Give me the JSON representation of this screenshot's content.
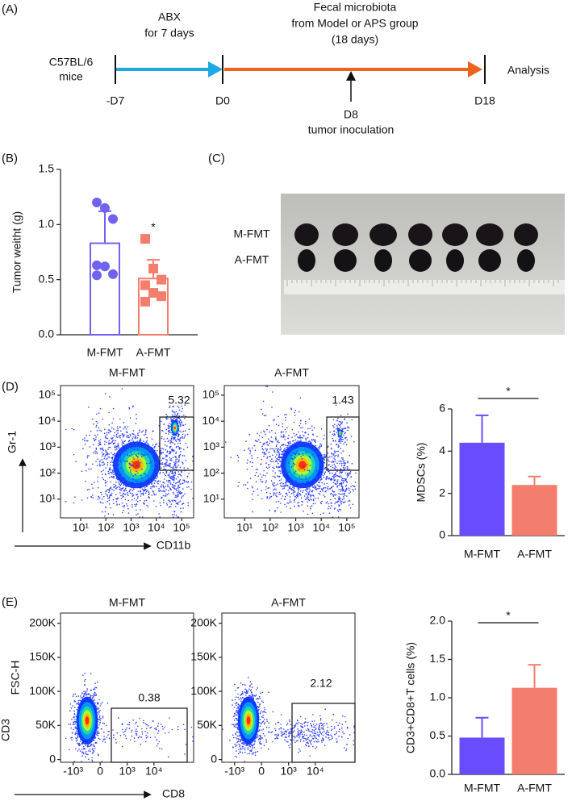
{
  "panel_labels": [
    "(A)",
    "(B)",
    "(C)",
    "(D)",
    "(E)"
  ],
  "timeline": {
    "subject_lines": [
      "C57BL/6",
      "mice"
    ],
    "phase1_lines": [
      "ABX",
      "for 7 days"
    ],
    "phase2_lines": [
      "Fecal microbiota",
      "from Model or APS group",
      "(18 days)"
    ],
    "days": [
      "-D7",
      "D0",
      "D18"
    ],
    "event_lines": [
      "D8",
      "tumor inoculation"
    ],
    "end_label": "Analysis"
  },
  "photo": {
    "row_labels": [
      "M-FMT",
      "A-FMT"
    ]
  },
  "chart_data": [
    {
      "type": "bar",
      "ylabel": "Tumor weitht (g)",
      "categories": [
        "M-FMT",
        "A-FMT"
      ],
      "values": [
        0.83,
        0.51
      ],
      "errors": [
        0.29,
        0.17
      ],
      "colors": [
        "#7262f2",
        "#f47e6e"
      ],
      "filled": false,
      "points": [
        [
          1.2,
          1.15,
          1.05,
          0.63,
          0.62,
          0.55,
          0.54
        ],
        [
          0.87,
          0.6,
          0.5,
          0.45,
          0.38,
          0.35,
          0.3
        ]
      ],
      "markers": [
        "circle",
        "square"
      ],
      "annotation": "*",
      "significance_line": false,
      "ylim": [
        0,
        1.5
      ],
      "yticks": [
        {
          "value": 0,
          "label": "0.0"
        },
        {
          "value": 0.5,
          "label": "0.5"
        },
        {
          "value": 1,
          "label": "1.0"
        },
        {
          "value": 1.5,
          "label": "1.5"
        }
      ]
    },
    {
      "type": "flow",
      "title": "M-FMT",
      "ylabel": "Gr-1",
      "xlabel": "CD11b",
      "xscale": "log",
      "yscale": "log",
      "xlim": [
        1.6,
        300000
      ],
      "ylim": [
        1.9,
        235000
      ],
      "gate_value": 5.32,
      "xticks": [
        {
          "value": 10,
          "label": "10¹"
        },
        {
          "value": 100,
          "label": "10²"
        },
        {
          "value": 1000,
          "label": "10³"
        },
        {
          "value": 10000,
          "label": "10⁴"
        },
        {
          "value": 100000,
          "label": "10⁵"
        }
      ],
      "yticks": [
        {
          "value": 10,
          "label": "10¹"
        },
        {
          "value": 100,
          "label": "10²"
        },
        {
          "value": 1000,
          "label": "10³"
        },
        {
          "value": 10000,
          "label": "10⁴"
        },
        {
          "value": 100000,
          "label": "10⁵"
        }
      ]
    },
    {
      "type": "flow",
      "title": "A-FMT",
      "xscale": "log",
      "yscale": "log",
      "xlim": [
        1.6,
        300000
      ],
      "ylim": [
        1.9,
        235000
      ],
      "gate_value": 1.43,
      "xticks": [
        {
          "value": 10,
          "label": "10¹"
        },
        {
          "value": 100,
          "label": "10²"
        },
        {
          "value": 1000,
          "label": "10³"
        },
        {
          "value": 10000,
          "label": "10⁴"
        },
        {
          "value": 100000,
          "label": "10⁵"
        }
      ],
      "yticks": [
        {
          "value": 10,
          "label": "10¹"
        },
        {
          "value": 100,
          "label": "10²"
        },
        {
          "value": 1000,
          "label": "10³"
        },
        {
          "value": 10000,
          "label": "10⁴"
        },
        {
          "value": 100000,
          "label": "10⁵"
        }
      ]
    },
    {
      "type": "bar",
      "ylabel": "MDSCs (%)",
      "categories": [
        "M-FMT",
        "A-FMT"
      ],
      "values": [
        4.4,
        2.4
      ],
      "errors": [
        1.3,
        0.4
      ],
      "colors": [
        "#6a4cff",
        "#f47e6e"
      ],
      "filled": true,
      "annotation": "*",
      "significance_line": true,
      "ylim": [
        0,
        6
      ],
      "yticks": [
        0,
        2,
        4,
        6
      ]
    },
    {
      "type": "flow",
      "title": "M-FMT",
      "ylabel": "FSC-H",
      "outer_ylabel": "CD3",
      "xlabel": "CD8",
      "xscale": "biexp",
      "yscale": "linear",
      "xlim": [
        -3000,
        300000
      ],
      "ylim": [
        -4000,
        215000
      ],
      "gate_value": 0.38,
      "xticks": [
        {
          "value": -1000,
          "label": "-10³"
        },
        0,
        {
          "value": 1000,
          "label": "10³"
        },
        {
          "value": 10000,
          "label": "10⁴"
        }
      ],
      "yticks": [
        0,
        {
          "value": 50000,
          "label": "50K"
        },
        {
          "value": 100000,
          "label": "100K"
        },
        {
          "value": 150000,
          "label": "150K"
        },
        {
          "value": 200000,
          "label": "200K"
        }
      ]
    },
    {
      "type": "flow",
      "title": "A-FMT",
      "xscale": "biexp",
      "yscale": "linear",
      "xlim": [
        -3000,
        300000
      ],
      "ylim": [
        -4000,
        215000
      ],
      "gate_value": 2.12,
      "xticks": [
        {
          "value": -1000,
          "label": "-10³"
        },
        0,
        {
          "value": 1000,
          "label": "10³"
        },
        {
          "value": 10000,
          "label": "10⁴"
        }
      ],
      "yticks": [
        0,
        {
          "value": 50000,
          "label": "50K"
        },
        {
          "value": 100000,
          "label": "100K"
        },
        {
          "value": 150000,
          "label": "150K"
        },
        {
          "value": 200000,
          "label": "200K"
        }
      ]
    },
    {
      "type": "bar",
      "ylabel": "CD3+CD8+T cells (%)",
      "categories": [
        "M-FMT",
        "A-FMT"
      ],
      "values": [
        0.48,
        1.13
      ],
      "errors": [
        0.26,
        0.3
      ],
      "colors": [
        "#6a4cff",
        "#f47e6e"
      ],
      "filled": true,
      "annotation": "*",
      "significance_line": true,
      "ylim": [
        0,
        2
      ],
      "yticks": [
        {
          "value": 0,
          "label": "0.0"
        },
        {
          "value": 0.5,
          "label": "0.5"
        },
        {
          "value": 1,
          "label": "1.0"
        },
        {
          "value": 1.5,
          "label": "1.5"
        },
        {
          "value": 2,
          "label": "2.0"
        }
      ]
    }
  ]
}
